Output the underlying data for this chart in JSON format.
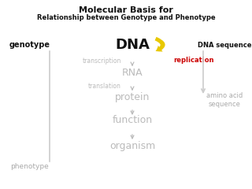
{
  "title_line1": "Molecular Basis for",
  "title_line2": "Relationship between Genotype and Phenotype",
  "bg_color": "#ffffff",
  "title_color": "#111111",
  "dna_label": "DNA",
  "dna_color": "#111111",
  "replication_label": "replication",
  "replication_color": "#cc0000",
  "dna_seq_label": "DNA sequence",
  "dna_seq_color": "#111111",
  "genotype_label": "genotype",
  "genotype_color": "#111111",
  "phenotype_label": "phenotype",
  "phenotype_color": "#aaaaaa",
  "flow_items": [
    "RNA",
    "protein",
    "function",
    "organism"
  ],
  "flow_color": "#bbbbbb",
  "step_labels": [
    "transcription",
    "translation"
  ],
  "step_color": "#bbbbbb",
  "amino_acid_label": "amino acid\nsequence",
  "amino_acid_color": "#aaaaaa",
  "arrow_color": "#bbbbbb",
  "replication_arrow_color": "#e8c800",
  "left_line_color": "#cccccc",
  "right_line_color": "#cccccc"
}
